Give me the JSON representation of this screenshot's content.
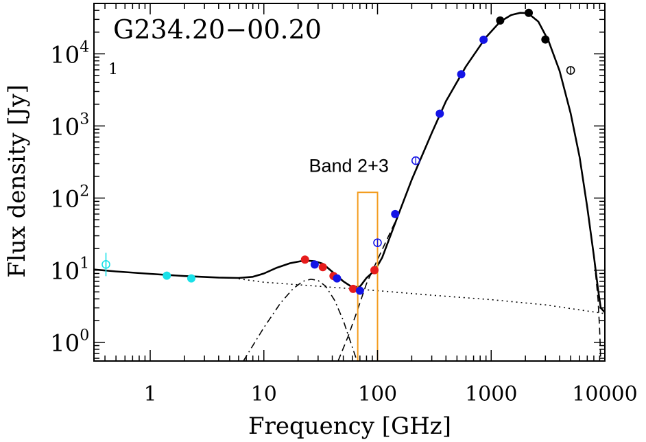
{
  "chart_data": {
    "type": "scatter",
    "title": "G234.20−00.20",
    "xlabel": "Frequency [GHz]",
    "ylabel": "Flux density [Jy]",
    "xscale": "log",
    "yscale": "log",
    "xlim": [
      0.32,
      10000
    ],
    "ylim": [
      0.55,
      50000
    ],
    "x_ticks": [
      {
        "value": 1,
        "label": "1"
      },
      {
        "value": 10,
        "label": "10"
      },
      {
        "value": 100,
        "label": "100"
      },
      {
        "value": 1000,
        "label": "1000"
      },
      {
        "value": 10000,
        "label": "10000"
      }
    ],
    "y_ticks": [
      {
        "value": 1,
        "base": "10",
        "exp": "0"
      },
      {
        "value": 10,
        "base": "10",
        "exp": "1"
      },
      {
        "value": 100,
        "base": "10",
        "exp": "2"
      },
      {
        "value": 1000,
        "base": "10",
        "exp": "3"
      },
      {
        "value": 10000,
        "base": "10",
        "exp": "4"
      }
    ],
    "annotation": {
      "label": "Band 2+3",
      "x_range": [
        67,
        100
      ],
      "y_range": [
        0.55,
        120
      ],
      "color": "#f39c1f"
    },
    "stray_mark": "1",
    "point_series": [
      {
        "name": "cyan filled",
        "color": "#19e0e8",
        "filled": true,
        "points": [
          {
            "x": 1.4,
            "y": 8.4
          },
          {
            "x": 2.3,
            "y": 7.7
          }
        ]
      },
      {
        "name": "cyan open",
        "color": "#19e0e8",
        "filled": false,
        "points": [
          {
            "x": 0.408,
            "y": 12
          }
        ]
      },
      {
        "name": "red filled",
        "color": "#e61c1c",
        "filled": true,
        "points": [
          {
            "x": 23,
            "y": 14
          },
          {
            "x": 33,
            "y": 11
          },
          {
            "x": 41,
            "y": 8.3
          },
          {
            "x": 61,
            "y": 5.5
          },
          {
            "x": 94,
            "y": 10
          }
        ]
      },
      {
        "name": "blue filled",
        "color": "#1414e6",
        "filled": true,
        "points": [
          {
            "x": 28,
            "y": 12
          },
          {
            "x": 44,
            "y": 7.7
          },
          {
            "x": 70,
            "y": 5.2
          },
          {
            "x": 143,
            "y": 60
          },
          {
            "x": 353,
            "y": 1480
          },
          {
            "x": 545,
            "y": 5200
          },
          {
            "x": 857,
            "y": 15700
          }
        ]
      },
      {
        "name": "blue open",
        "color": "#1414e6",
        "filled": false,
        "points": [
          {
            "x": 100,
            "y": 24
          },
          {
            "x": 217,
            "y": 330
          }
        ]
      },
      {
        "name": "black filled",
        "color": "#000000",
        "filled": true,
        "points": [
          {
            "x": 1200,
            "y": 29000
          },
          {
            "x": 2140,
            "y": 37000
          },
          {
            "x": 3000,
            "y": 15800
          }
        ]
      },
      {
        "name": "black open",
        "color": "#000000",
        "filled": false,
        "points": [
          {
            "x": 5000,
            "y": 5900
          }
        ]
      }
    ],
    "curves": [
      {
        "name": "total model",
        "style": "solid",
        "points": [
          [
            0.32,
            10.2
          ],
          [
            0.5,
            9.6
          ],
          [
            1,
            8.9
          ],
          [
            2,
            8.3
          ],
          [
            4,
            7.9
          ],
          [
            6,
            7.8
          ],
          [
            8,
            8.1
          ],
          [
            10,
            9
          ],
          [
            13,
            10.8
          ],
          [
            17,
            12.5
          ],
          [
            21,
            13.3
          ],
          [
            25,
            13.5
          ],
          [
            28,
            13.3
          ],
          [
            33,
            12.3
          ],
          [
            40,
            9.5
          ],
          [
            50,
            7
          ],
          [
            60,
            5.8
          ],
          [
            70,
            5.9
          ],
          [
            80,
            7.8
          ],
          [
            95,
            10
          ],
          [
            110,
            15
          ],
          [
            150,
            55
          ],
          [
            200,
            180
          ],
          [
            300,
            800
          ],
          [
            400,
            2200
          ],
          [
            600,
            6700
          ],
          [
            900,
            17000
          ],
          [
            1200,
            28000
          ],
          [
            1500,
            34500
          ],
          [
            1800,
            37000
          ],
          [
            2100,
            36800
          ],
          [
            2600,
            28000
          ],
          [
            3200,
            15000
          ],
          [
            4000,
            5800
          ],
          [
            5000,
            1500
          ],
          [
            6000,
            370
          ],
          [
            7000,
            75
          ],
          [
            8000,
            16
          ],
          [
            8700,
            5.5
          ],
          [
            9200,
            3
          ],
          [
            10000,
            2.6
          ]
        ]
      },
      {
        "name": "free-free",
        "style": "dotted",
        "points": [
          [
            6,
            7.6
          ],
          [
            10,
            6.8
          ],
          [
            30,
            6
          ],
          [
            100,
            5.2
          ],
          [
            300,
            4.5
          ],
          [
            1000,
            3.9
          ],
          [
            3000,
            3.3
          ],
          [
            10000,
            2.5
          ]
        ]
      },
      {
        "name": "spinning dust",
        "style": "dashdot",
        "points": [
          [
            6.6,
            0.55
          ],
          [
            8,
            0.9
          ],
          [
            10,
            1.6
          ],
          [
            14,
            3.5
          ],
          [
            18,
            5.5
          ],
          [
            22,
            7
          ],
          [
            26,
            7.5
          ],
          [
            30,
            7.2
          ],
          [
            35,
            6
          ],
          [
            42,
            3.8
          ],
          [
            50,
            2
          ],
          [
            58,
            1
          ],
          [
            66,
            0.55
          ]
        ]
      },
      {
        "name": "thermal dust",
        "style": "dashed",
        "points": [
          [
            45,
            0.55
          ],
          [
            55,
            1.2
          ],
          [
            65,
            2.5
          ],
          [
            80,
            6.5
          ],
          [
            100,
            14
          ],
          [
            150,
            55
          ],
          [
            200,
            180
          ],
          [
            300,
            800
          ],
          [
            400,
            2200
          ],
          [
            600,
            6700
          ],
          [
            900,
            17000
          ],
          [
            1200,
            28000
          ],
          [
            1500,
            34500
          ],
          [
            1800,
            37000
          ],
          [
            2100,
            36800
          ],
          [
            2600,
            28000
          ],
          [
            3200,
            15000
          ],
          [
            4000,
            5800
          ],
          [
            5000,
            1500
          ],
          [
            6000,
            370
          ],
          [
            7000,
            75
          ],
          [
            8000,
            16
          ],
          [
            8700,
            4
          ],
          [
            9000,
            1.5
          ],
          [
            9200,
            0.55
          ]
        ]
      }
    ]
  }
}
